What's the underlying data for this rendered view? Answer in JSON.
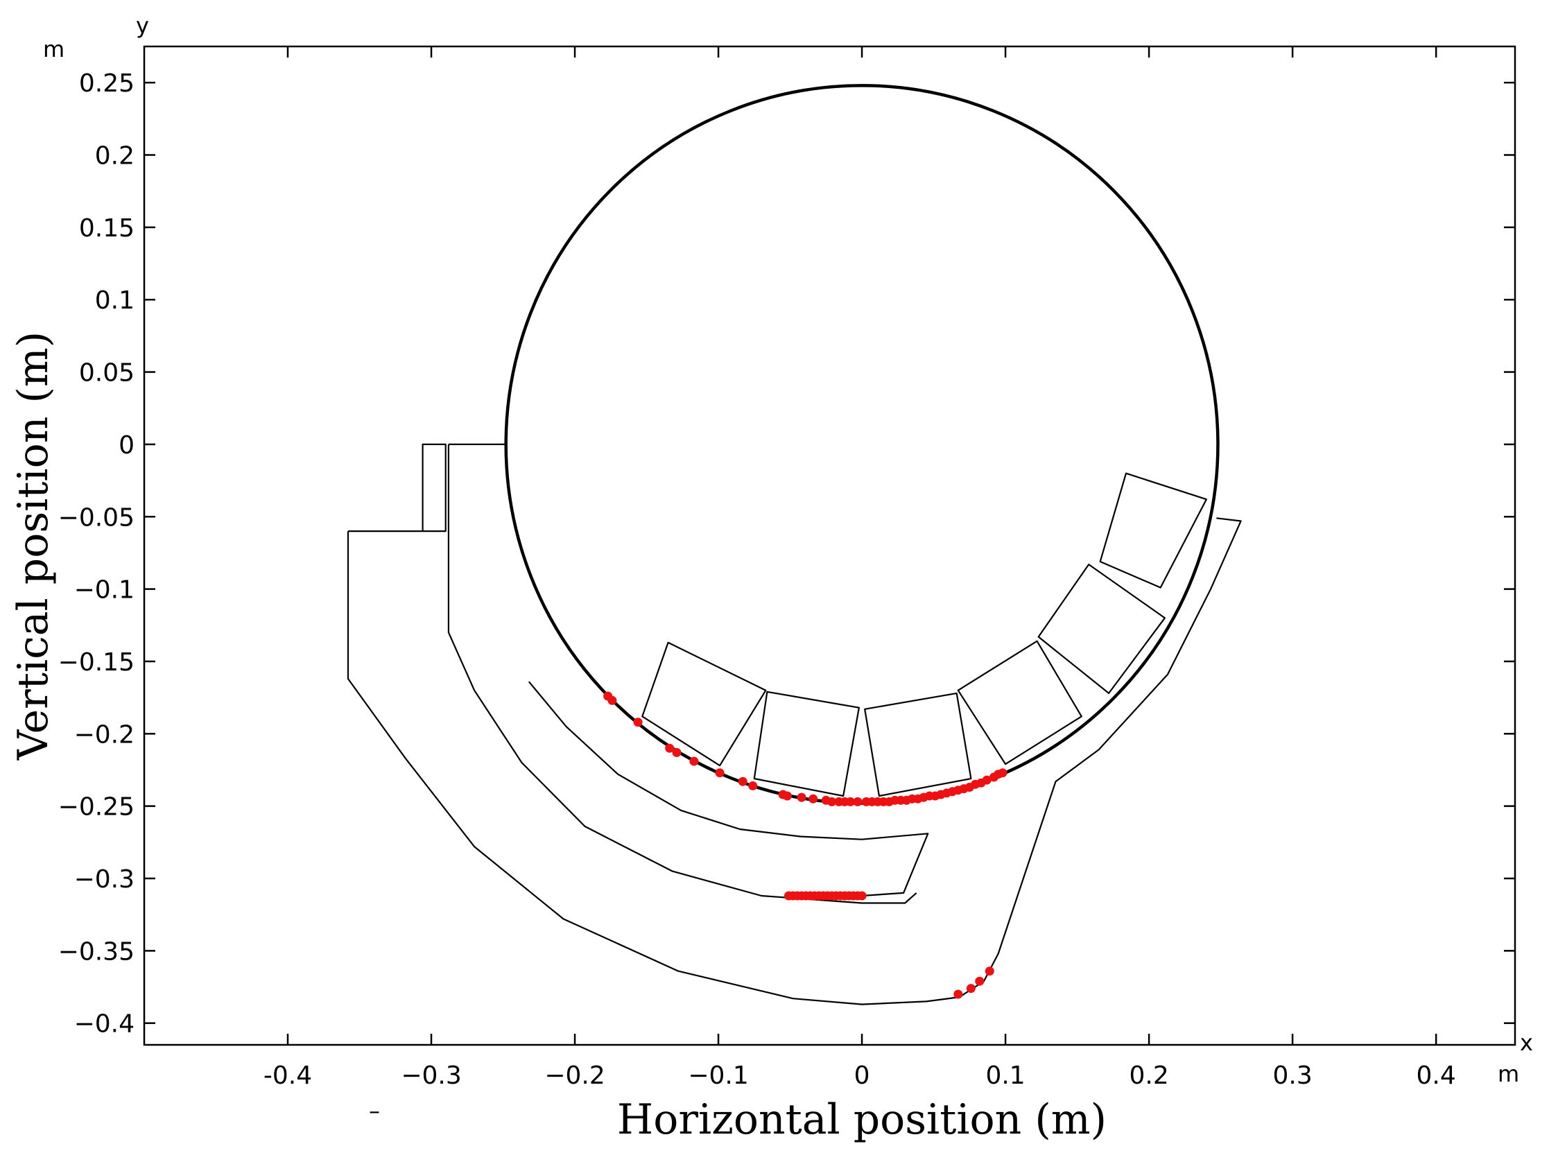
{
  "chart_data": {
    "type": "scatter",
    "xlabel": "Horizontal position (m)",
    "ylabel": "Vertical position (m)",
    "x_axis_name": "x",
    "y_axis_name": "y",
    "x_unit": "m",
    "y_unit": "m",
    "stray_mark": "–",
    "xlim": [
      -0.5,
      0.455
    ],
    "ylim": [
      -0.415,
      0.275
    ],
    "x_ticks": [
      {
        "value": -0.4,
        "label": "-0.4"
      },
      {
        "value": -0.3,
        "label": "−0.3"
      },
      {
        "value": -0.2,
        "label": "−0.2"
      },
      {
        "value": -0.1,
        "label": "−0.1"
      },
      {
        "value": 0,
        "label": "0"
      },
      {
        "value": 0.1,
        "label": "0.1"
      },
      {
        "value": 0.2,
        "label": "0.2"
      },
      {
        "value": 0.3,
        "label": "0.3"
      },
      {
        "value": 0.4,
        "label": "0.4"
      }
    ],
    "y_ticks": [
      {
        "value": 0.25,
        "label": "0.25"
      },
      {
        "value": 0.2,
        "label": "0.2"
      },
      {
        "value": 0.15,
        "label": "0.15"
      },
      {
        "value": 0.1,
        "label": "0.1"
      },
      {
        "value": 0.05,
        "label": "0.05"
      },
      {
        "value": 0,
        "label": "0"
      },
      {
        "value": -0.05,
        "label": "−0.05"
      },
      {
        "value": -0.1,
        "label": "−0.1"
      },
      {
        "value": -0.15,
        "label": "−0.15"
      },
      {
        "value": -0.2,
        "label": "−0.2"
      },
      {
        "value": -0.25,
        "label": "−0.25"
      },
      {
        "value": -0.3,
        "label": "−0.3"
      },
      {
        "value": -0.35,
        "label": "−0.35"
      },
      {
        "value": -0.4,
        "label": "−0.4"
      }
    ],
    "grid": false,
    "legend": "none",
    "colors": {
      "geometry": "#000000",
      "particles": "#ee1111"
    },
    "drum": {
      "center": [
        0,
        0
      ],
      "radius": 0.248
    },
    "lifters": [
      [
        [
          -0.153,
          -0.188
        ],
        [
          -0.135,
          -0.137
        ],
        [
          -0.067,
          -0.17
        ],
        [
          -0.099,
          -0.222
        ]
      ],
      [
        [
          -0.075,
          -0.231
        ],
        [
          -0.066,
          -0.171
        ],
        [
          -0.002,
          -0.182
        ],
        [
          -0.013,
          -0.243
        ]
      ],
      [
        [
          0.012,
          -0.243
        ],
        [
          0.002,
          -0.183
        ],
        [
          0.066,
          -0.172
        ],
        [
          0.076,
          -0.231
        ]
      ],
      [
        [
          0.1,
          -0.221
        ],
        [
          0.067,
          -0.17
        ],
        [
          0.122,
          -0.136
        ],
        [
          0.153,
          -0.188
        ]
      ],
      [
        [
          0.172,
          -0.172
        ],
        [
          0.123,
          -0.133
        ],
        [
          0.158,
          -0.083
        ],
        [
          0.211,
          -0.12
        ]
      ],
      [
        [
          0.208,
          -0.099
        ],
        [
          0.166,
          -0.081
        ],
        [
          0.184,
          -0.02
        ],
        [
          0.24,
          -0.038
        ]
      ]
    ],
    "inner_chute": [
      [
        -0.232,
        -0.164
      ],
      [
        -0.206,
        -0.195
      ],
      [
        -0.17,
        -0.228
      ],
      [
        -0.126,
        -0.253
      ],
      [
        -0.085,
        -0.266
      ],
      [
        -0.043,
        -0.271
      ],
      [
        0,
        -0.273
      ],
      [
        0.046,
        -0.269
      ],
      [
        0.029,
        -0.31
      ],
      [
        0.0,
        -0.312
      ]
    ],
    "middle_chute": [
      [
        -0.288,
        0
      ],
      [
        -0.288,
        -0.13
      ],
      [
        -0.27,
        -0.17
      ],
      [
        -0.237,
        -0.22
      ],
      [
        -0.193,
        -0.264
      ],
      [
        -0.132,
        -0.295
      ],
      [
        -0.07,
        -0.312
      ],
      [
        0.0,
        -0.317
      ],
      [
        0.03,
        -0.317
      ],
      [
        0.038,
        -0.31
      ]
    ],
    "middle_chute_top": [
      [
        -0.288,
        0
      ],
      [
        -0.248,
        0
      ]
    ],
    "outer_chute": [
      [
        -0.358,
        -0.06
      ],
      [
        -0.29,
        -0.06
      ],
      [
        -0.29,
        0
      ],
      [
        -0.306,
        0
      ],
      [
        -0.306,
        -0.06
      ]
    ],
    "outer_chute_bottom": [
      [
        -0.358,
        -0.06
      ],
      [
        -0.358,
        -0.162
      ],
      [
        -0.318,
        -0.217
      ],
      [
        -0.27,
        -0.278
      ],
      [
        -0.208,
        -0.328
      ],
      [
        -0.128,
        -0.364
      ],
      [
        -0.048,
        -0.383
      ],
      [
        0.0,
        -0.387
      ],
      [
        0.045,
        -0.385
      ],
      [
        0.068,
        -0.382
      ],
      [
        0.085,
        -0.371
      ],
      [
        0.095,
        -0.352
      ],
      [
        0.135,
        -0.233
      ],
      [
        0.165,
        -0.211
      ],
      [
        0.213,
        -0.159
      ],
      [
        0.243,
        -0.1
      ],
      [
        0.264,
        -0.053
      ],
      [
        0.247,
        -0.051
      ]
    ],
    "particles_drum": [
      [
        -0.177,
        -0.174
      ],
      [
        -0.174,
        -0.177
      ],
      [
        -0.156,
        -0.192
      ],
      [
        -0.134,
        -0.21
      ],
      [
        -0.129,
        -0.213
      ],
      [
        -0.117,
        -0.219
      ],
      [
        -0.099,
        -0.227
      ],
      [
        -0.083,
        -0.233
      ],
      [
        -0.076,
        -0.236
      ],
      [
        -0.055,
        -0.242
      ],
      [
        -0.052,
        -0.243
      ],
      [
        -0.042,
        -0.244
      ],
      [
        -0.034,
        -0.245
      ],
      [
        -0.025,
        -0.246
      ],
      [
        -0.021,
        -0.247
      ],
      [
        -0.016,
        -0.247
      ],
      [
        -0.012,
        -0.247
      ],
      [
        -0.008,
        -0.247
      ],
      [
        -0.003,
        -0.247
      ],
      [
        0.003,
        -0.247
      ],
      [
        0.007,
        -0.247
      ],
      [
        0.011,
        -0.247
      ],
      [
        0.015,
        -0.247
      ],
      [
        0.019,
        -0.247
      ],
      [
        0.023,
        -0.246
      ],
      [
        0.027,
        -0.246
      ],
      [
        0.031,
        -0.246
      ],
      [
        0.035,
        -0.245
      ],
      [
        0.039,
        -0.245
      ],
      [
        0.043,
        -0.244
      ],
      [
        0.047,
        -0.243
      ],
      [
        0.051,
        -0.243
      ],
      [
        0.055,
        -0.242
      ],
      [
        0.059,
        -0.241
      ],
      [
        0.063,
        -0.24
      ],
      [
        0.067,
        -0.239
      ],
      [
        0.071,
        -0.238
      ],
      [
        0.075,
        -0.237
      ],
      [
        0.079,
        -0.235
      ],
      [
        0.083,
        -0.234
      ],
      [
        0.087,
        -0.232
      ],
      [
        0.092,
        -0.23
      ],
      [
        0.095,
        -0.228
      ],
      [
        0.098,
        -0.227
      ]
    ],
    "particles_chute": [
      [
        -0.051,
        -0.312
      ],
      [
        -0.048,
        -0.312
      ],
      [
        -0.045,
        -0.312
      ],
      [
        -0.042,
        -0.312
      ],
      [
        -0.039,
        -0.312
      ],
      [
        -0.036,
        -0.312
      ],
      [
        -0.033,
        -0.312
      ],
      [
        -0.03,
        -0.312
      ],
      [
        -0.027,
        -0.312
      ],
      [
        -0.024,
        -0.312
      ],
      [
        -0.021,
        -0.312
      ],
      [
        -0.018,
        -0.312
      ],
      [
        -0.015,
        -0.312
      ],
      [
        -0.012,
        -0.312
      ],
      [
        -0.009,
        -0.312
      ],
      [
        -0.006,
        -0.312
      ],
      [
        -0.003,
        -0.312
      ],
      [
        0.0,
        -0.312
      ]
    ],
    "particles_outlet": [
      [
        0.067,
        -0.38
      ],
      [
        0.076,
        -0.376
      ],
      [
        0.082,
        -0.371
      ],
      [
        0.089,
        -0.364
      ]
    ]
  }
}
